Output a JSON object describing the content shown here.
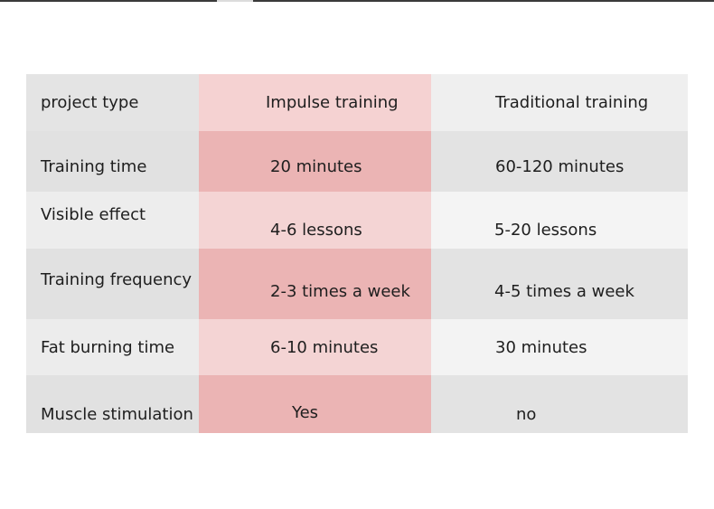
{
  "table": {
    "header": [
      "project type",
      "Impulse training",
      "Traditional training"
    ],
    "rows": [
      [
        "Training time",
        "20 minutes",
        "60-120 minutes"
      ],
      [
        "Visible effect",
        "4-6 lessons",
        "5-20 lessons"
      ],
      [
        "Training frequency",
        "2-3 times a week",
        "4-5 times a week"
      ],
      [
        "Fat burning time",
        "6-10 minutes",
        "30 minutes"
      ],
      [
        "Muscle stimulation",
        "Yes",
        "no"
      ]
    ]
  },
  "colors": {
    "highlight_header": "#f5d2d2",
    "highlight_dark": "#ebb4b4",
    "highlight_light": "#f4d4d4",
    "gray_dark": "#e1e1e1",
    "gray_light": "#ededed"
  }
}
